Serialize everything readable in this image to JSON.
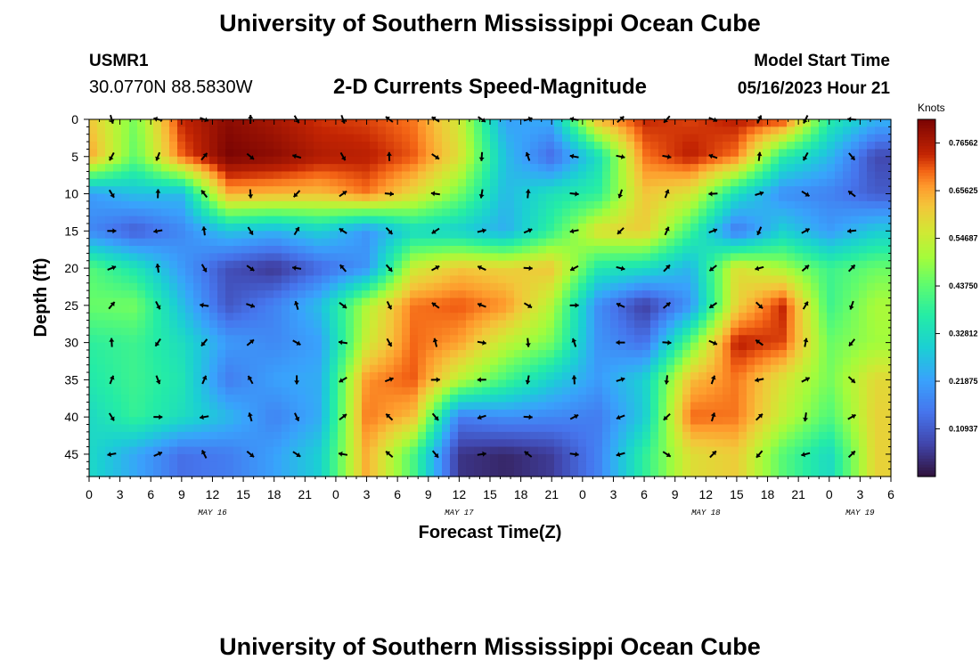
{
  "chart_data": {
    "type": "heatmap",
    "title": "University of Southern Mississippi Ocean Cube",
    "station_id": "USMR1",
    "station_location": "30.0770N  88.5830W",
    "subtitle": "2-D Currents Speed-Magnitude",
    "model_start_label": "Model Start Time",
    "model_start_value": "05/16/2023 Hour 21",
    "xlabel": "Forecast Time(Z)",
    "ylabel": "Depth (ft)",
    "x_tick_labels": [
      "0",
      "3",
      "6",
      "9",
      "12",
      "15",
      "18",
      "21",
      "0",
      "3",
      "6",
      "9",
      "12",
      "15",
      "18",
      "21",
      "0",
      "3",
      "6",
      "9",
      "12",
      "15",
      "18",
      "21",
      "0",
      "3",
      "6"
    ],
    "x_range_hours": [
      0,
      78
    ],
    "day_labels": [
      {
        "label": "MAY 16",
        "hour": 12
      },
      {
        "label": "MAY 17",
        "hour": 36
      },
      {
        "label": "MAY 18",
        "hour": 60
      },
      {
        "label": "MAY 19",
        "hour": 75
      }
    ],
    "y_ticks": [
      0,
      5,
      10,
      15,
      20,
      25,
      30,
      35,
      40,
      45
    ],
    "y_range_ft": [
      0,
      48
    ],
    "colorbar": {
      "unit": "Knots",
      "ticks": [
        "0.76562",
        "0.65625",
        "0.54687",
        "0.43750",
        "0.32812",
        "0.21875",
        "0.10937"
      ],
      "min": 0.0,
      "max": 0.82
    },
    "grid_hours": [
      0,
      4.5,
      9,
      13.5,
      18,
      22.5,
      27,
      31.5,
      36,
      40.5,
      45,
      49.5,
      54,
      58.5,
      63,
      67.5,
      72,
      76.5
    ],
    "grid_depths": [
      0,
      5,
      10,
      15,
      20,
      25,
      30,
      35,
      40,
      45
    ],
    "speed_knots": [
      [
        0.62,
        0.46,
        0.74,
        0.8,
        0.77,
        0.73,
        0.72,
        0.69,
        0.56,
        0.22,
        0.24,
        0.64,
        0.74,
        0.72,
        0.75,
        0.73,
        0.37,
        0.25
      ],
      [
        0.66,
        0.44,
        0.7,
        0.82,
        0.8,
        0.76,
        0.75,
        0.71,
        0.58,
        0.27,
        0.13,
        0.33,
        0.69,
        0.75,
        0.69,
        0.37,
        0.26,
        0.08
      ],
      [
        0.21,
        0.27,
        0.26,
        0.65,
        0.64,
        0.63,
        0.69,
        0.59,
        0.46,
        0.26,
        0.34,
        0.38,
        0.62,
        0.57,
        0.33,
        0.19,
        0.17,
        0.11
      ],
      [
        0.18,
        0.11,
        0.18,
        0.28,
        0.25,
        0.3,
        0.2,
        0.32,
        0.3,
        0.24,
        0.39,
        0.58,
        0.61,
        0.4,
        0.15,
        0.3,
        0.21,
        0.29
      ],
      [
        0.43,
        0.35,
        0.21,
        0.09,
        0.05,
        0.13,
        0.2,
        0.55,
        0.62,
        0.6,
        0.62,
        0.36,
        0.33,
        0.25,
        0.58,
        0.51,
        0.4,
        0.45
      ],
      [
        0.45,
        0.46,
        0.27,
        0.1,
        0.17,
        0.27,
        0.52,
        0.69,
        0.71,
        0.67,
        0.52,
        0.19,
        0.06,
        0.2,
        0.6,
        0.74,
        0.4,
        0.51
      ],
      [
        0.38,
        0.4,
        0.33,
        0.21,
        0.18,
        0.22,
        0.55,
        0.7,
        0.66,
        0.54,
        0.46,
        0.2,
        0.14,
        0.44,
        0.75,
        0.72,
        0.45,
        0.5
      ],
      [
        0.36,
        0.4,
        0.35,
        0.16,
        0.22,
        0.24,
        0.67,
        0.71,
        0.53,
        0.41,
        0.3,
        0.21,
        0.3,
        0.63,
        0.69,
        0.57,
        0.46,
        0.59
      ],
      [
        0.32,
        0.39,
        0.33,
        0.26,
        0.17,
        0.24,
        0.69,
        0.63,
        0.16,
        0.19,
        0.18,
        0.16,
        0.29,
        0.7,
        0.69,
        0.54,
        0.42,
        0.6
      ],
      [
        0.32,
        0.23,
        0.14,
        0.16,
        0.22,
        0.3,
        0.65,
        0.42,
        0.05,
        0.03,
        0.06,
        0.17,
        0.38,
        0.58,
        0.61,
        0.43,
        0.32,
        0.6
      ]
    ]
  }
}
